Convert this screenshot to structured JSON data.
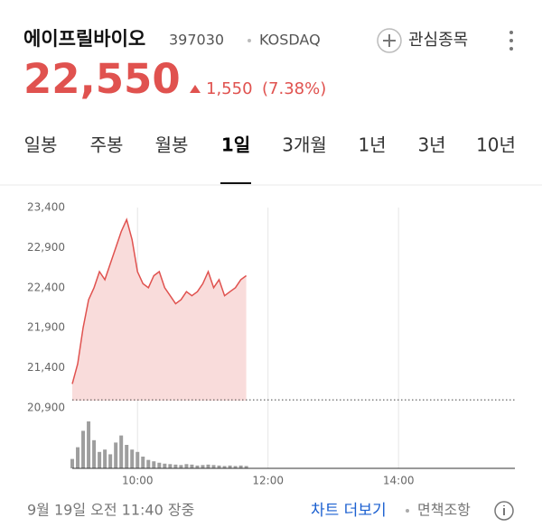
{
  "header": {
    "name": "에이프릴바이오",
    "code": "397030",
    "market": "KOSDAQ",
    "watch": "관심종목"
  },
  "price": {
    "current": "22,550",
    "change": "1,550",
    "change_pct": "(7.38%)"
  },
  "tabs": [
    "일봉",
    "주봉",
    "월봉",
    "1일",
    "3개월",
    "1년",
    "3년",
    "10년"
  ],
  "chart_data": {
    "type": "line",
    "color": "#e0524f",
    "fill": "#f9dcdb",
    "volume_color": "#9e9e9e",
    "x": [
      "09:00",
      "09:05",
      "09:10",
      "09:15",
      "09:20",
      "09:25",
      "09:30",
      "09:35",
      "09:40",
      "09:45",
      "09:50",
      "09:55",
      "10:00",
      "10:05",
      "10:10",
      "10:15",
      "10:20",
      "10:25",
      "10:30",
      "10:35",
      "10:40",
      "10:45",
      "10:50",
      "10:55",
      "11:00",
      "11:05",
      "11:10",
      "11:15",
      "11:20",
      "11:25",
      "11:30",
      "11:35",
      "11:40"
    ],
    "values": [
      21200,
      21450,
      21900,
      22250,
      22400,
      22600,
      22500,
      22700,
      22900,
      23100,
      23250,
      23000,
      22600,
      22450,
      22400,
      22550,
      22600,
      22400,
      22300,
      22200,
      22250,
      22350,
      22300,
      22350,
      22450,
      22600,
      22400,
      22500,
      22300,
      22350,
      22400,
      22500,
      22550
    ],
    "volume": [
      20,
      45,
      80,
      100,
      60,
      35,
      40,
      30,
      55,
      70,
      50,
      40,
      35,
      25,
      18,
      15,
      12,
      10,
      9,
      8,
      7,
      9,
      8,
      6,
      7,
      8,
      7,
      6,
      5,
      6,
      5,
      6,
      5
    ],
    "reference": 21000,
    "xlim": [
      "09:00",
      "15:47"
    ],
    "ylim": [
      20900,
      23400
    ],
    "yticks": [
      {
        "value": 20900,
        "label": "20,900"
      },
      {
        "value": 21400,
        "label": "21,400"
      },
      {
        "value": 21900,
        "label": "21,900"
      },
      {
        "value": 22400,
        "label": "22,400"
      },
      {
        "value": 22900,
        "label": "22,900"
      },
      {
        "value": 23400,
        "label": "23,400"
      }
    ],
    "xticks": [
      "10:00",
      "12:00",
      "14:00"
    ],
    "grid": "x"
  },
  "footer": {
    "timestamp": "9월 19일 오전 11:40 장중",
    "more": "차트 더보기",
    "disclaimer": "면책조항"
  }
}
